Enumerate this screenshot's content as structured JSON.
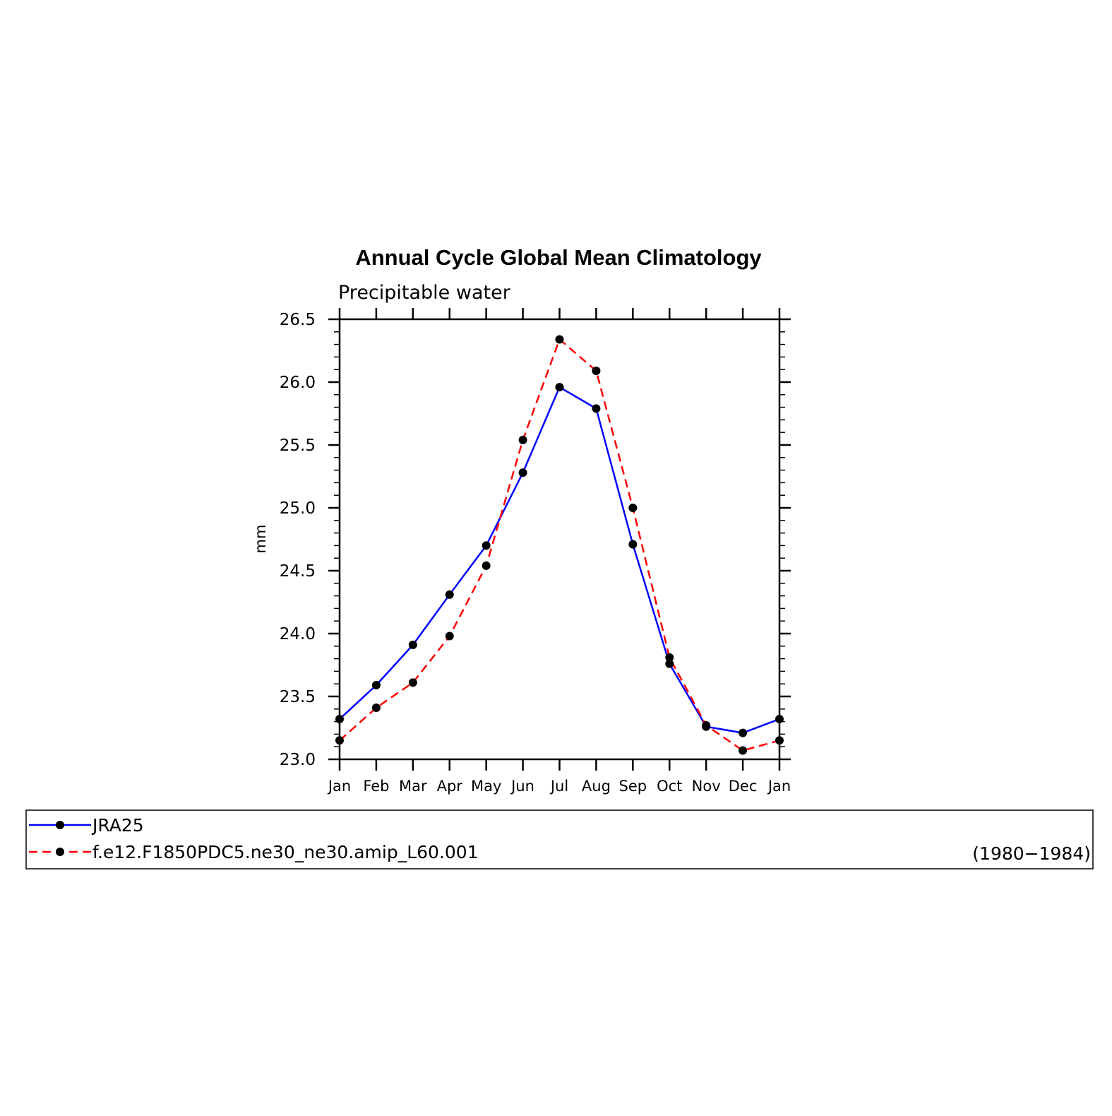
{
  "chart_data": {
    "type": "line",
    "title": "Annual Cycle Global Mean Climatology",
    "subtitle": "Precipitable water",
    "xlabel": "",
    "ylabel": "mm",
    "categories": [
      "Jan",
      "Feb",
      "Mar",
      "Apr",
      "May",
      "Jun",
      "Jul",
      "Aug",
      "Sep",
      "Oct",
      "Nov",
      "Dec",
      "Jan"
    ],
    "ylim": [
      23.0,
      26.5
    ],
    "yticks": [
      "23.0",
      "23.5",
      "24.0",
      "24.5",
      "25.0",
      "25.5",
      "26.0",
      "26.5"
    ],
    "series": [
      {
        "name": "JRA25",
        "color": "#0000ff",
        "dash": "solid",
        "values": [
          23.32,
          23.59,
          23.91,
          24.31,
          24.7,
          25.28,
          25.96,
          25.79,
          24.71,
          23.76,
          23.26,
          23.21,
          23.32
        ]
      },
      {
        "name": "f.e12.F1850PDC5.ne30_ne30.amip_L60.001",
        "color": "#ff0000",
        "dash": "dashed",
        "values": [
          23.15,
          23.41,
          23.61,
          23.98,
          24.54,
          25.54,
          26.34,
          26.09,
          25.0,
          23.81,
          23.27,
          23.07,
          23.15
        ]
      }
    ],
    "legend": {
      "placement": "bottom",
      "note": "(1980−1984)"
    },
    "grid": false
  }
}
